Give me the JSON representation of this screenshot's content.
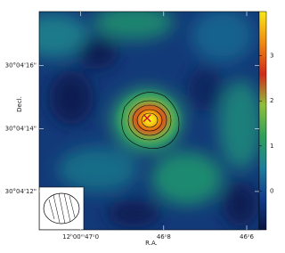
{
  "chart_data": {
    "type": "image",
    "x_label": "R.A.",
    "y_label": "Decl.",
    "xlim": [
      47.1,
      46.57
    ],
    "xticks": [
      {
        "value": 47.0,
        "label": "12ʰ00ᵐ47ˢ0"
      },
      {
        "value": 46.8,
        "label": "46ˢ8"
      },
      {
        "value": 46.6,
        "label": "46ˢ6"
      }
    ],
    "ylim": [
      10.78,
      17.72
    ],
    "yticks": [
      {
        "value": 16,
        "label": "30°04'16\""
      },
      {
        "value": 14,
        "label": "30°04'14\""
      },
      {
        "value": 12,
        "label": "30°04'12\""
      }
    ],
    "clim": [
      -0.86,
      3.98
    ],
    "cticks": [
      0,
      1,
      2,
      3
    ],
    "colormap": [
      "#0a1440",
      "#123a8a",
      "#1d7f9a",
      "#2fa05a",
      "#8fbf3a",
      "#d22a1a",
      "#f08a10",
      "#f8e818"
    ],
    "source": {
      "x": 46.84,
      "y": 14.33,
      "color": "#c8102e"
    }
  }
}
